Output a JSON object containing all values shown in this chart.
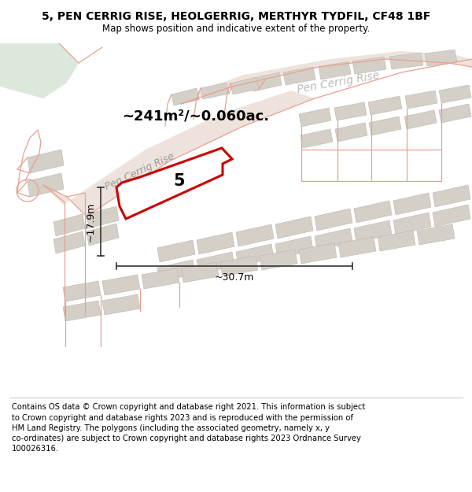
{
  "title": "5, PEN CERRIG RISE, HEOLGERRIG, MERTHYR TYDFIL, CF48 1BF",
  "subtitle": "Map shows position and indicative extent of the property.",
  "footer": "Contains OS data © Crown copyright and database right 2021. This information is subject\nto Crown copyright and database rights 2023 and is reproduced with the permission of\nHM Land Registry. The polygons (including the associated geometry, namely x, y\nco-ordinates) are subject to Crown copyright and database rights 2023 Ordnance Survey\n100026316.",
  "area_label": "~241m²/~0.060ac.",
  "width_label": "~30.7m",
  "height_label": "~17.9m",
  "plot_number": "5",
  "road_label_lower": "Pen Cerrig Rise",
  "road_label_upper": "Pen Cerrig Rise",
  "map_bg": "#f2efeb",
  "green_patch_color": "#dce8dc",
  "building_color": "#d4d0c8",
  "road_fill_color": "#ede3dc",
  "highlight_fill": "#ffffff",
  "highlight_border": "#cc0000",
  "cadastral_color": "#e8a090",
  "dim_line_color": "#333333",
  "title_fontsize": 10,
  "subtitle_fontsize": 8.5,
  "footer_fontsize": 7.2,
  "area_fontsize": 13,
  "plot_num_fontsize": 15,
  "road_label_fontsize": 9
}
